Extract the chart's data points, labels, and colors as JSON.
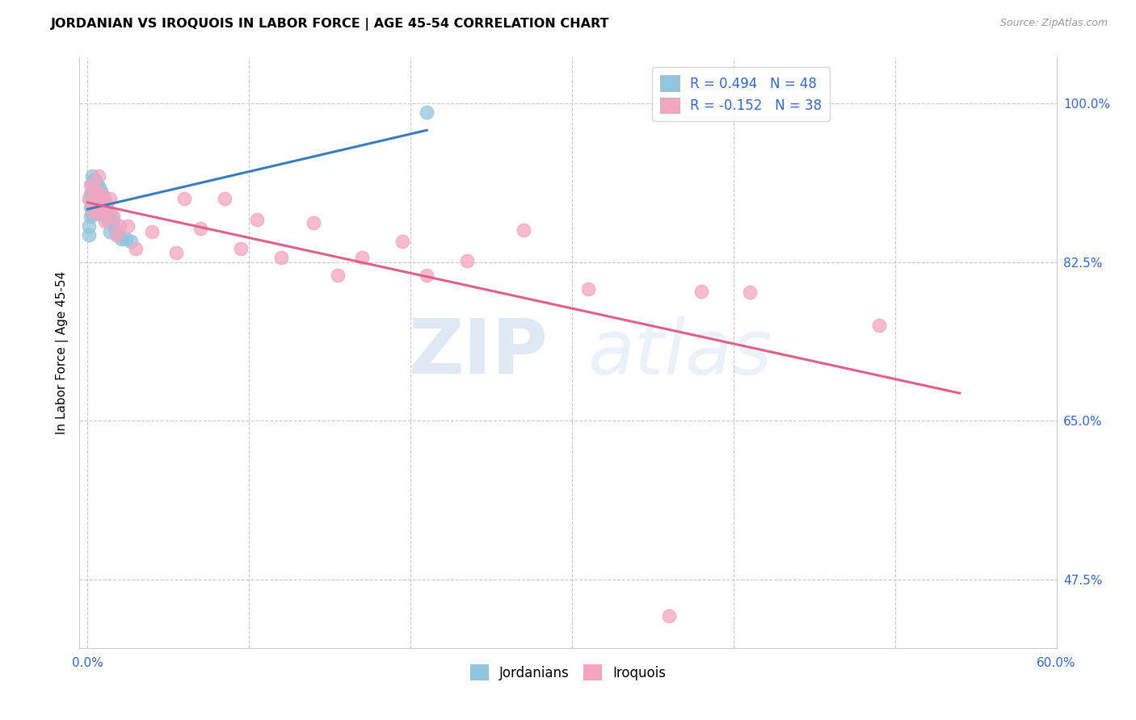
{
  "title": "JORDANIAN VS IROQUOIS IN LABOR FORCE | AGE 45-54 CORRELATION CHART",
  "source": "Source: ZipAtlas.com",
  "ylabel": "In Labor Force | Age 45-54",
  "xlim": [
    -0.005,
    0.6
  ],
  "ylim": [
    0.4,
    1.05
  ],
  "xtick_positions": [
    0.0,
    0.1,
    0.2,
    0.3,
    0.4,
    0.5,
    0.6
  ],
  "xtick_labels": [
    "0.0%",
    "",
    "",
    "",
    "",
    "",
    "60.0%"
  ],
  "ytick_positions": [
    1.0,
    0.825,
    0.65,
    0.475
  ],
  "ytick_labels": [
    "100.0%",
    "82.5%",
    "65.0%",
    "47.5%"
  ],
  "blue_color": "#92c5de",
  "pink_color": "#f4a5c0",
  "blue_line_color": "#3a7dbf",
  "pink_line_color": "#e0608a",
  "r_blue": 0.494,
  "n_blue": 48,
  "r_pink": -0.152,
  "n_pink": 38,
  "legend_label_blue": "Jordanians",
  "legend_label_pink": "Iroquois",
  "watermark_zip": "ZIP",
  "watermark_atlas": "atlas",
  "blue_scatter_x": [
    0.001,
    0.001,
    0.002,
    0.002,
    0.002,
    0.002,
    0.003,
    0.003,
    0.003,
    0.003,
    0.003,
    0.004,
    0.004,
    0.004,
    0.004,
    0.005,
    0.005,
    0.005,
    0.005,
    0.006,
    0.006,
    0.006,
    0.007,
    0.007,
    0.007,
    0.007,
    0.008,
    0.008,
    0.008,
    0.009,
    0.009,
    0.009,
    0.01,
    0.01,
    0.011,
    0.011,
    0.012,
    0.012,
    0.013,
    0.014,
    0.015,
    0.016,
    0.017,
    0.019,
    0.021,
    0.024,
    0.027,
    0.21
  ],
  "blue_scatter_y": [
    0.865,
    0.855,
    0.9,
    0.892,
    0.885,
    0.875,
    0.92,
    0.912,
    0.9,
    0.888,
    0.878,
    0.915,
    0.905,
    0.895,
    0.885,
    0.915,
    0.905,
    0.895,
    0.885,
    0.91,
    0.9,
    0.89,
    0.908,
    0.898,
    0.888,
    0.878,
    0.905,
    0.895,
    0.882,
    0.9,
    0.89,
    0.88,
    0.895,
    0.885,
    0.893,
    0.883,
    0.885,
    0.875,
    0.87,
    0.858,
    0.875,
    0.87,
    0.862,
    0.855,
    0.85,
    0.85,
    0.848,
    0.99
  ],
  "pink_scatter_x": [
    0.001,
    0.002,
    0.003,
    0.004,
    0.005,
    0.006,
    0.007,
    0.008,
    0.009,
    0.01,
    0.011,
    0.012,
    0.014,
    0.016,
    0.018,
    0.02,
    0.025,
    0.03,
    0.04,
    0.055,
    0.06,
    0.07,
    0.085,
    0.095,
    0.105,
    0.12,
    0.14,
    0.155,
    0.17,
    0.195,
    0.21,
    0.235,
    0.27,
    0.31,
    0.38,
    0.41,
    0.49,
    0.36
  ],
  "pink_scatter_y": [
    0.895,
    0.91,
    0.885,
    0.88,
    0.905,
    0.895,
    0.92,
    0.9,
    0.88,
    0.895,
    0.87,
    0.885,
    0.895,
    0.875,
    0.855,
    0.865,
    0.865,
    0.84,
    0.858,
    0.835,
    0.895,
    0.862,
    0.895,
    0.84,
    0.872,
    0.83,
    0.868,
    0.81,
    0.83,
    0.848,
    0.81,
    0.826,
    0.86,
    0.795,
    0.793,
    0.792,
    0.755,
    0.435
  ]
}
